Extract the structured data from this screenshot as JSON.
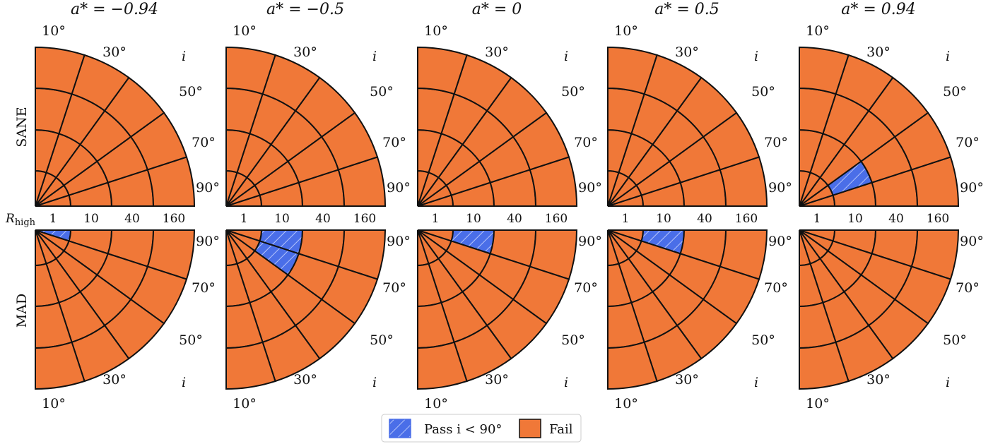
{
  "chart_data": {
    "type": "heatmap",
    "description_axes": {
      "radial": "R_high",
      "angular": "i"
    },
    "columns": [
      "a* = −0.94",
      "a* = −0.5",
      "a* = 0",
      "a* = 0.5",
      "a* = 0.94"
    ],
    "rows": [
      "SANE",
      "MAD"
    ],
    "r_label_html": "R",
    "r_label_sub": "high",
    "r_ticks": [
      "1",
      "10",
      "40",
      "160"
    ],
    "r_values": [
      1,
      10,
      40,
      160
    ],
    "i_ticks": [
      "10°",
      "30°",
      "50°",
      "70°",
      "90°"
    ],
    "i_values": [
      10,
      30,
      50,
      70,
      90
    ],
    "angle_axis_label": "i",
    "legend": [
      {
        "key": "pass",
        "label": "Pass i < 90°"
      },
      {
        "key": "fail",
        "label": "Fail"
      }
    ],
    "colors": {
      "fail": "#f07838",
      "pass": "#4a6ee8",
      "grid": "#111111"
    },
    "pass_cells": [
      {
        "row": "SANE",
        "column": "a* = 0.94",
        "R_high": 10,
        "i": 70
      },
      {
        "row": "MAD",
        "column": "a* = −0.94",
        "R_high": 1,
        "i": 90
      },
      {
        "row": "MAD",
        "column": "a* = −0.5",
        "R_high": 10,
        "i": 90
      },
      {
        "row": "MAD",
        "column": "a* = −0.5",
        "R_high": 10,
        "i": 70
      },
      {
        "row": "MAD",
        "column": "a* = 0",
        "R_high": 10,
        "i": 90
      },
      {
        "row": "MAD",
        "column": "a* = 0.5",
        "R_high": 10,
        "i": 90
      }
    ]
  }
}
